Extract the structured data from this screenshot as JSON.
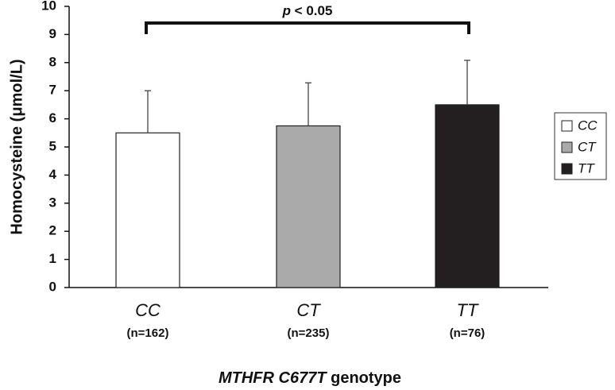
{
  "chart_data": {
    "type": "bar",
    "categories": [
      "CC",
      "CT",
      "TT"
    ],
    "sample_sizes": [
      "(n=162)",
      "(n=235)",
      "(n=76)"
    ],
    "values": [
      5.5,
      5.75,
      6.5
    ],
    "error_upper": [
      7.0,
      7.28,
      8.08
    ],
    "colors": [
      "#ffffff",
      "#aaaaaa",
      "#231f20"
    ],
    "ylim": [
      0,
      10
    ],
    "yticks": [
      0,
      1,
      2,
      3,
      4,
      5,
      6,
      7,
      8,
      9,
      10
    ],
    "ylabel": "Homocysteine (μmol/L)",
    "xlabel_italic": "MTHFR C677T",
    "xlabel_rest": " genotype",
    "legend": {
      "placement": "right",
      "entries": [
        "CC",
        "CT",
        "TT"
      ]
    },
    "significance": {
      "from": "CC",
      "to": "TT",
      "p_italic": "p",
      "p_rest": " < 0.05"
    },
    "grid": false
  }
}
